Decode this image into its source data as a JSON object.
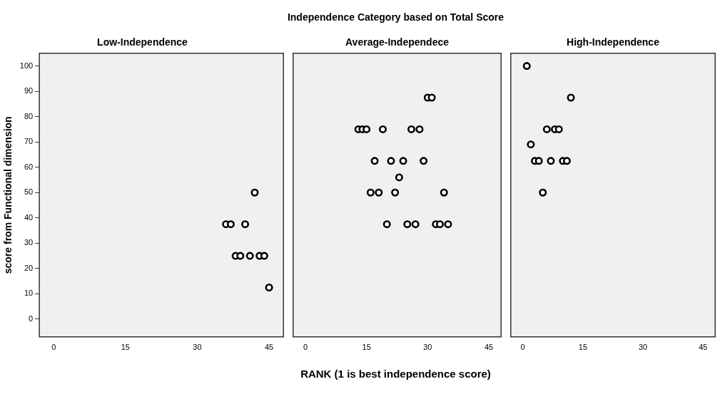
{
  "chart_data": [
    {
      "type": "scatter",
      "title": "Low-Independence",
      "ylabel": "score from Functional dimension",
      "annotations": [
        "Independence Category based on Total Score"
      ],
      "xlim": [
        -3,
        48
      ],
      "xticks": [
        0,
        15,
        30,
        45
      ],
      "ylim": [
        -7,
        105
      ],
      "yticks": [
        0,
        10,
        20,
        30,
        40,
        50,
        60,
        70,
        80,
        90,
        100
      ],
      "grid": false,
      "legend": false,
      "marker": "circle",
      "series": [
        {
          "color": "#000000",
          "x": [
            42,
            36,
            37,
            40,
            38,
            39,
            41,
            43,
            44,
            45
          ],
          "values": [
            50,
            37.5,
            37.5,
            37.5,
            25,
            25,
            25,
            25,
            25,
            12.5
          ]
        }
      ]
    },
    {
      "type": "scatter",
      "title": "Average-Independece",
      "xlabel": "RANK (1 is best independence score)",
      "xlim": [
        -3,
        48
      ],
      "xticks": [
        0,
        15,
        30,
        45
      ],
      "ylim": [
        -7,
        105
      ],
      "tick_labels": "x",
      "grid": false,
      "legend": false,
      "marker": "circle",
      "series": [
        {
          "color": "#000000",
          "x": [
            30,
            31,
            13,
            14,
            15,
            19,
            26,
            28,
            17,
            21,
            24,
            29,
            23,
            16,
            18,
            22,
            34,
            20,
            25,
            27,
            32,
            33,
            35
          ],
          "values": [
            87.5,
            87.5,
            75,
            75,
            75,
            75,
            75,
            75,
            62.5,
            62.5,
            62.5,
            62.5,
            56,
            50,
            50,
            50,
            50,
            37.5,
            37.5,
            37.5,
            37.5,
            37.5,
            37.5
          ]
        }
      ]
    },
    {
      "type": "scatter",
      "title": "High-Independence",
      "xlim": [
        -3,
        48
      ],
      "xticks": [
        0,
        15,
        30,
        45
      ],
      "ylim": [
        -7,
        105
      ],
      "tick_labels": "x",
      "grid": false,
      "legend": false,
      "marker": "circle",
      "series": [
        {
          "color": "#000000",
          "x": [
            1,
            12,
            6,
            8,
            9,
            2,
            3,
            4,
            7,
            10,
            11,
            5
          ],
          "values": [
            100,
            87.5,
            75,
            75,
            75,
            69,
            62.5,
            62.5,
            62.5,
            62.5,
            62.5,
            50
          ]
        }
      ]
    }
  ]
}
